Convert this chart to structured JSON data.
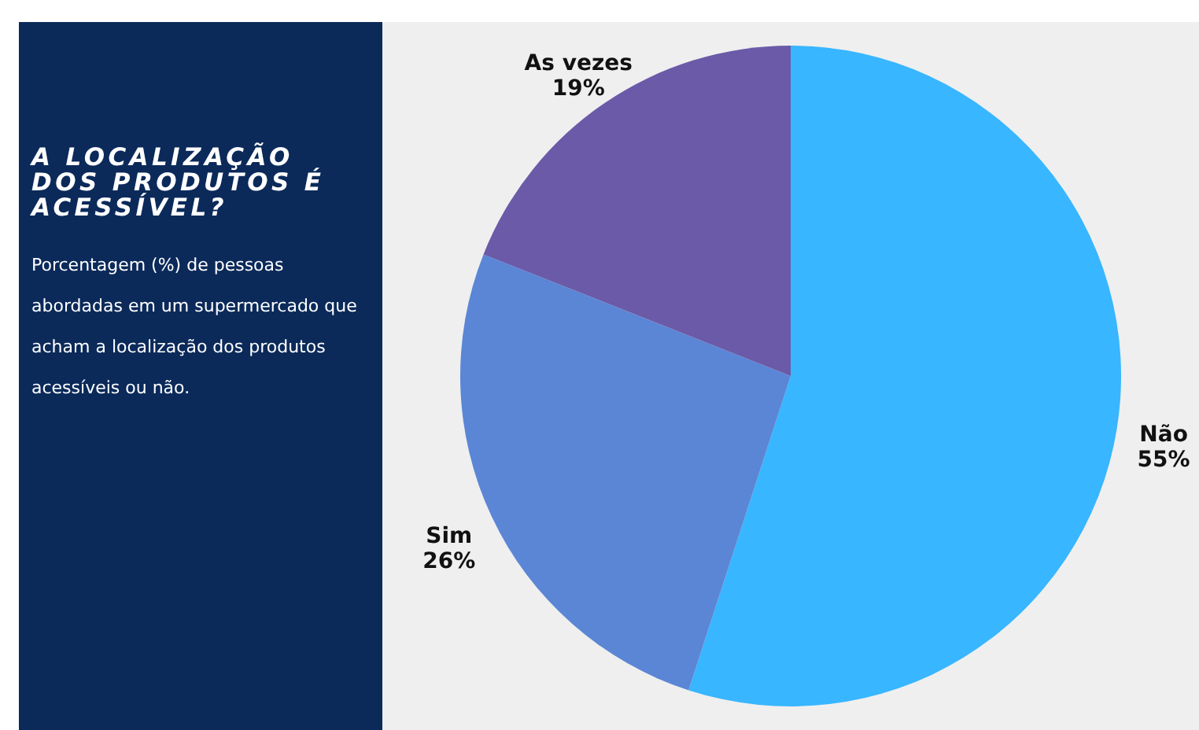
{
  "chart_data": {
    "type": "pie",
    "title": "A LOCALIZAÇÃO DOS PRODUTOS É ACESSÍVEL?",
    "subtitle": "Porcentagem (%) de pessoas abordadas em um supermercado que acham a localização dos produtos acessíveis ou não.",
    "categories": [
      "Não",
      "Sim",
      "As vezes"
    ],
    "values": [
      55,
      26,
      19
    ],
    "colors": [
      "#38b6ff",
      "#5b86d6",
      "#6a5aa8"
    ],
    "value_labels": [
      "55%",
      "26%",
      "19%"
    ]
  }
}
